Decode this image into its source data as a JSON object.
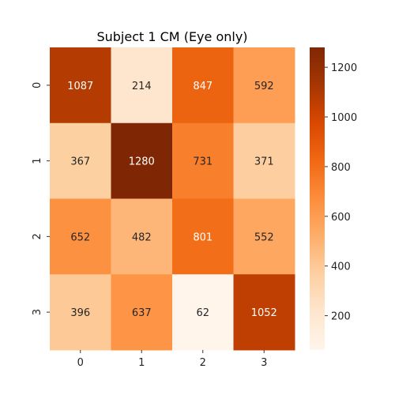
{
  "chart_data": {
    "type": "heatmap",
    "title": "Subject 1 CM (Eye only)",
    "xlabel": "",
    "ylabel": "",
    "x_categories": [
      "0",
      "1",
      "2",
      "3"
    ],
    "y_categories": [
      "0",
      "1",
      "2",
      "3"
    ],
    "values": [
      [
        1087,
        214,
        847,
        592
      ],
      [
        367,
        1280,
        731,
        371
      ],
      [
        652,
        482,
        801,
        552
      ],
      [
        396,
        637,
        62,
        1052
      ]
    ],
    "colormap": "Oranges",
    "colorbar": {
      "range": [
        62,
        1280
      ],
      "ticks": [
        200,
        400,
        600,
        800,
        1000,
        1200
      ]
    },
    "grid": false,
    "legend": "colorbar-right"
  }
}
